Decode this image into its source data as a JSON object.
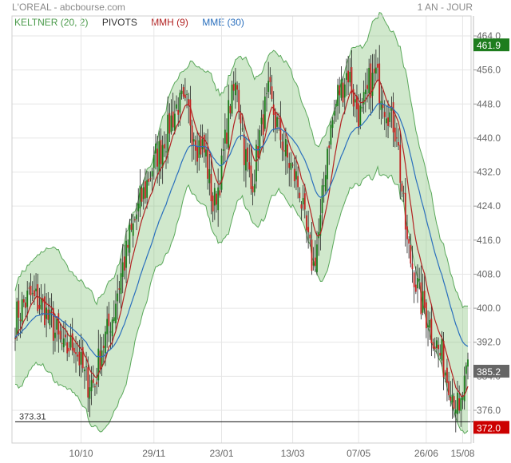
{
  "header": {
    "title": "L'OREAL - abcbourse.com",
    "period": "1 AN - JOUR"
  },
  "legend": [
    {
      "label": "KELTNER (20, 2)",
      "color": "#4a9a4a"
    },
    {
      "label": "PIVOTS",
      "color": "#333333"
    },
    {
      "label": "MMH (9)",
      "color": "#b22222"
    },
    {
      "label": "MME (30)",
      "color": "#2a6fbd"
    }
  ],
  "chart_data": {
    "type": "candlestick",
    "ylim": [
      370,
      465
    ],
    "y_ticks": [
      "464.0",
      "456.0",
      "448.0",
      "440.0",
      "432.0",
      "424.0",
      "416.0",
      "408.0",
      "400.0",
      "392.0",
      "384.0",
      "376.0"
    ],
    "x_ticks": [
      "10/10",
      "29/11",
      "23/01",
      "13/03",
      "07/05",
      "26/06",
      "15/08"
    ],
    "price_labels": [
      {
        "label": "461.9",
        "value": 461.9,
        "color": "#1e7d1e"
      },
      {
        "label": "385.2",
        "value": 385.2,
        "color": "#666666"
      },
      {
        "label": "372.0",
        "value": 372.0,
        "color": "#cc0000"
      }
    ],
    "pivot_line": {
      "value": 373.31,
      "label": "373.31"
    },
    "close_anchors": [
      [
        0,
        398
      ],
      [
        8,
        403
      ],
      [
        16,
        400
      ],
      [
        22,
        395
      ],
      [
        28,
        390
      ],
      [
        34,
        392
      ],
      [
        40,
        384
      ],
      [
        46,
        382
      ],
      [
        50,
        391
      ],
      [
        56,
        398
      ],
      [
        62,
        410
      ],
      [
        70,
        422
      ],
      [
        78,
        432
      ],
      [
        86,
        440
      ],
      [
        94,
        448
      ],
      [
        100,
        446
      ],
      [
        104,
        440
      ],
      [
        110,
        436
      ],
      [
        114,
        424
      ],
      [
        118,
        430
      ],
      [
        124,
        448
      ],
      [
        128,
        453
      ],
      [
        132,
        438
      ],
      [
        136,
        428
      ],
      [
        140,
        438
      ],
      [
        146,
        450
      ],
      [
        152,
        442
      ],
      [
        156,
        436
      ],
      [
        160,
        432
      ],
      [
        164,
        428
      ],
      [
        168,
        417
      ],
      [
        172,
        410
      ],
      [
        176,
        420
      ],
      [
        180,
        438
      ],
      [
        186,
        450
      ],
      [
        192,
        456
      ],
      [
        196,
        448
      ],
      [
        200,
        445
      ],
      [
        204,
        452
      ],
      [
        208,
        455
      ],
      [
        212,
        450
      ],
      [
        216,
        445
      ],
      [
        220,
        442
      ],
      [
        222,
        432
      ],
      [
        226,
        415
      ],
      [
        230,
        408
      ],
      [
        234,
        402
      ],
      [
        238,
        398
      ],
      [
        242,
        392
      ],
      [
        246,
        388
      ],
      [
        250,
        383
      ],
      [
        254,
        378
      ],
      [
        256,
        374
      ],
      [
        258,
        380
      ],
      [
        261,
        385
      ]
    ]
  }
}
